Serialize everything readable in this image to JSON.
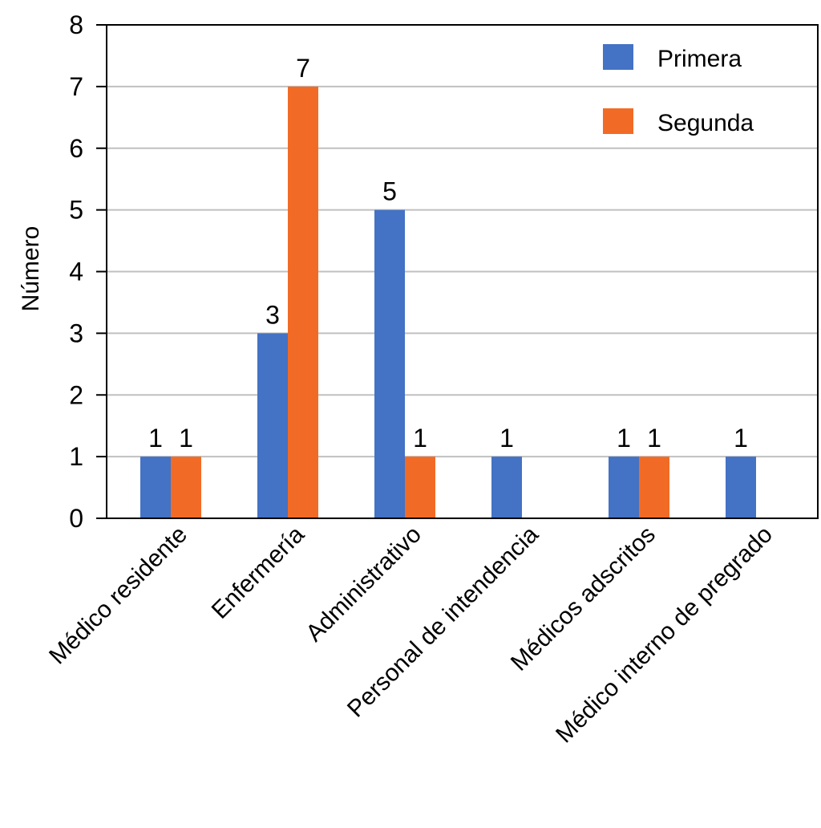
{
  "chart_data": {
    "type": "bar",
    "title": "",
    "xlabel": "",
    "ylabel": "Número",
    "ylim": [
      0,
      8
    ],
    "yticks": [
      "0",
      "1",
      "2",
      "3",
      "4",
      "5",
      "6",
      "7",
      "8"
    ],
    "grid": true,
    "legend_position": "top-right",
    "categories": [
      "Médico residente",
      "Enfermería",
      "Administrativo",
      "Personal de intendencia",
      "Médicos adscritos",
      "Médico interno de pregrado"
    ],
    "series": [
      {
        "name": "Primera",
        "color": "#4472C4",
        "values": [
          1,
          3,
          5,
          1,
          1,
          1
        ]
      },
      {
        "name": "Segunda",
        "color": "#F26B26",
        "values": [
          1,
          7,
          1,
          null,
          1,
          null
        ]
      }
    ]
  }
}
